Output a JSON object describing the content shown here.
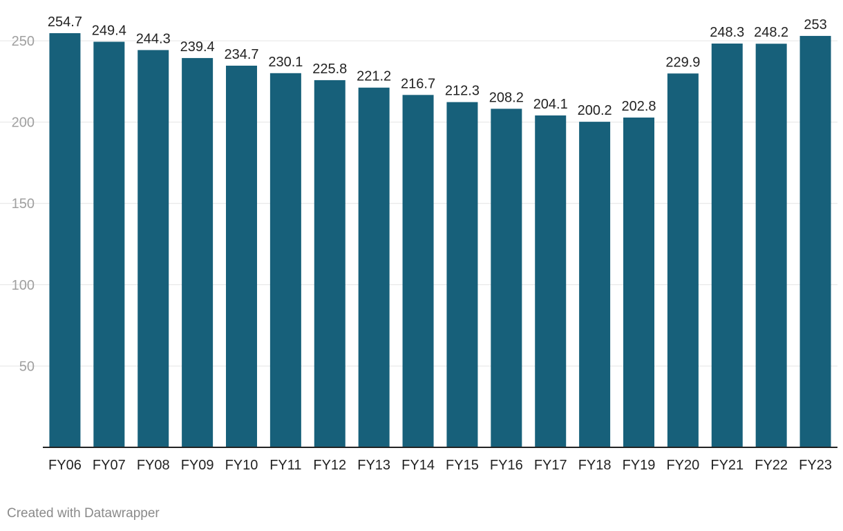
{
  "chart_data": {
    "type": "bar",
    "categories": [
      "FY06",
      "FY07",
      "FY08",
      "FY09",
      "FY10",
      "FY11",
      "FY12",
      "FY13",
      "FY14",
      "FY15",
      "FY16",
      "FY17",
      "FY18",
      "FY19",
      "FY20",
      "FY21",
      "FY22",
      "FY23"
    ],
    "values": [
      254.7,
      249.4,
      244.3,
      239.4,
      234.7,
      230.1,
      225.8,
      221.2,
      216.7,
      212.3,
      208.2,
      204.1,
      200.2,
      202.8,
      229.9,
      248.3,
      248.2,
      253
    ],
    "value_labels": [
      "254.7",
      "249.4",
      "244.3",
      "239.4",
      "234.7",
      "230.1",
      "225.8",
      "221.2",
      "216.7",
      "212.3",
      "208.2",
      "204.1",
      "200.2",
      "202.8",
      "229.9",
      "248.3",
      "248.2",
      "253"
    ],
    "yticks": [
      50,
      100,
      150,
      200,
      250
    ],
    "ylim": [
      0,
      250
    ],
    "grid": true,
    "bar_color": "#17607a"
  },
  "footer": {
    "credit": "Created with Datawrapper"
  }
}
